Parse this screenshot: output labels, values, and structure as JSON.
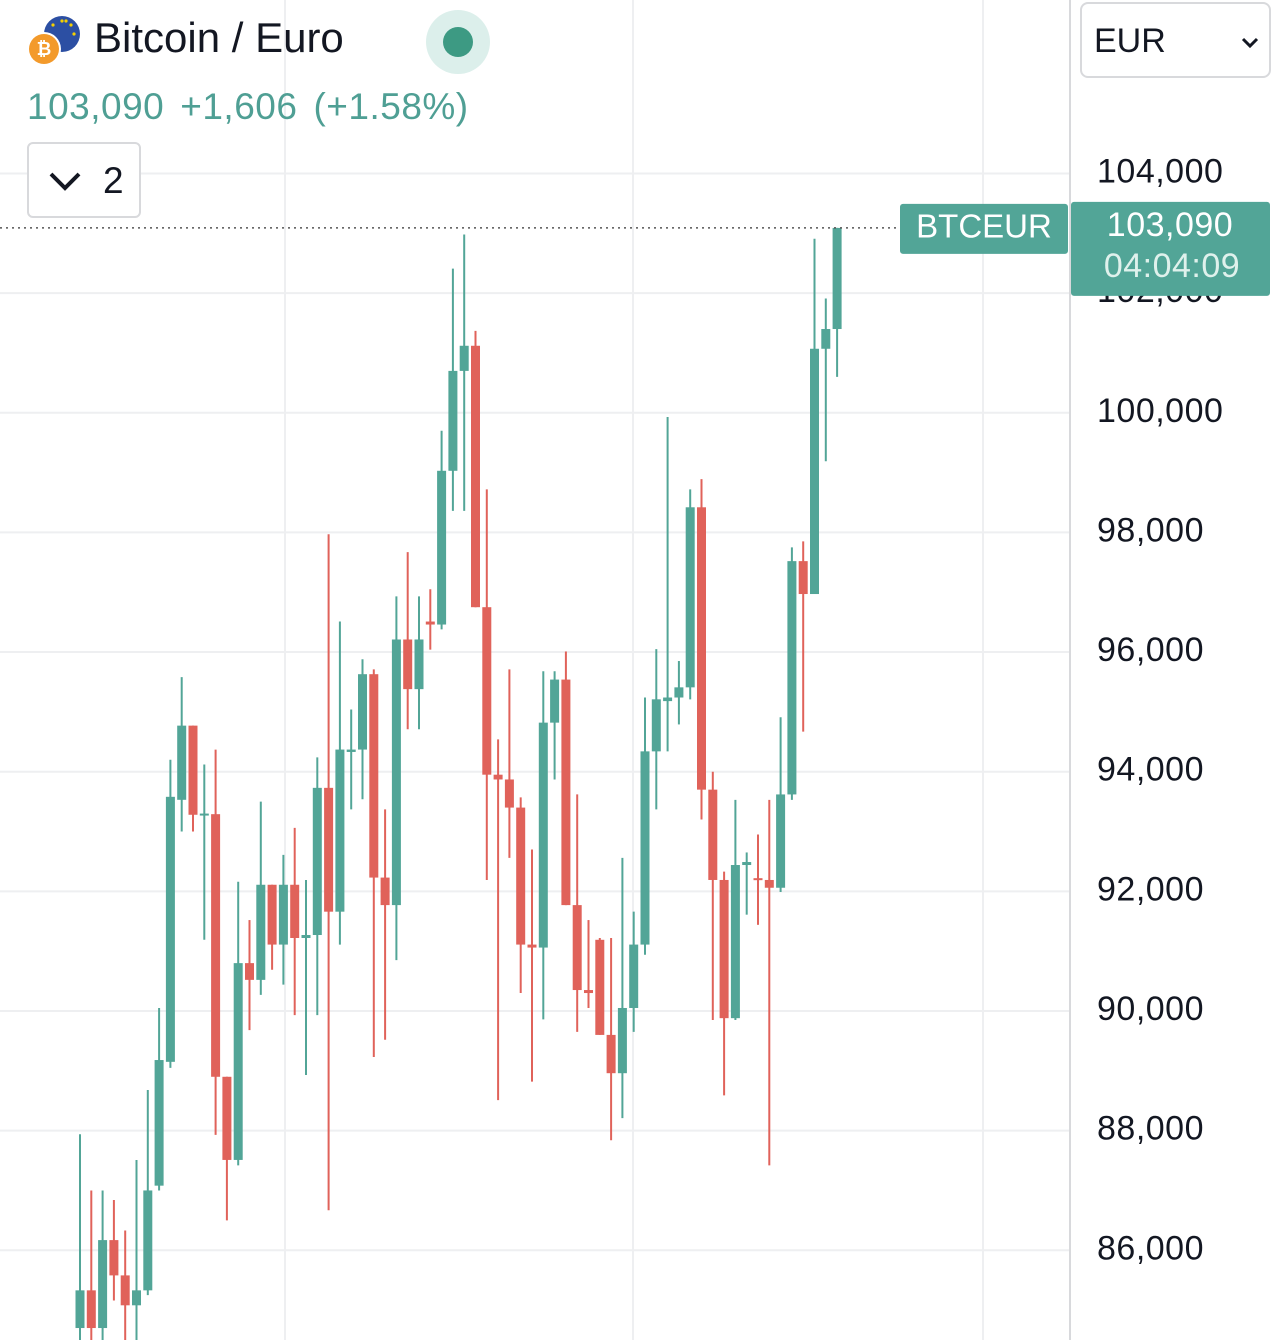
{
  "header": {
    "title": "Bitcoin / Euro",
    "price": "103,090",
    "change": "+1,606",
    "change_pct": "(+1.58%)",
    "indicators_count": "2",
    "currency": "EUR"
  },
  "chart_data": {
    "type": "candlestick",
    "up_color": "#52a597",
    "down_color": "#e0625a",
    "ylim": [
      84500,
      106900
    ],
    "yticks": [
      {
        "value": 86000,
        "label": "86,000"
      },
      {
        "value": 88000,
        "label": "88,000"
      },
      {
        "value": 90000,
        "label": "90,000"
      },
      {
        "value": 92000,
        "label": "92,000"
      },
      {
        "value": 94000,
        "label": "94,000"
      },
      {
        "value": 96000,
        "label": "96,000"
      },
      {
        "value": 98000,
        "label": "98,000"
      },
      {
        "value": 100000,
        "label": "100,000"
      },
      {
        "value": 102000,
        "label": "102,000"
      },
      {
        "value": 104000,
        "label": "104,000"
      }
    ],
    "grid": true,
    "open": [
      84700,
      85330,
      84700,
      86170,
      85580,
      85080,
      85330,
      87080,
      89150,
      93530,
      94770,
      93280,
      93290,
      88900,
      87510,
      90800,
      90520,
      92110,
      91110,
      92110,
      91220,
      91270,
      93730,
      91660,
      94330,
      94370,
      95630,
      92230,
      91770,
      96210,
      95380,
      96510,
      96460,
      99030,
      100700,
      101120,
      96750,
      93950,
      93870,
      93400,
      91110,
      91060,
      94820,
      95540,
      91770,
      90350,
      91190,
      89600,
      88960,
      90050,
      91110,
      94340,
      95180,
      95240,
      95410,
      98420,
      93700,
      92190,
      89880,
      92440,
      92220,
      92190,
      92060,
      93620,
      97520,
      96970,
      101070,
      101400
    ],
    "high": [
      87940,
      87000,
      87000,
      86840,
      86330,
      87510,
      88680,
      90050,
      94200,
      95580,
      94770,
      94120,
      94370,
      88900,
      92160,
      91520,
      93500,
      92110,
      92610,
      93060,
      92190,
      94240,
      97970,
      96510,
      95040,
      95880,
      95710,
      93370,
      96930,
      97670,
      96930,
      97050,
      99700,
      102410,
      102980,
      101370,
      98720,
      94540,
      95710,
      93570,
      92700,
      95680,
      95680,
      96010,
      93620,
      91520,
      91220,
      91220,
      92560,
      91660,
      95240,
      96050,
      99930,
      95850,
      98720,
      98890,
      94000,
      92330,
      93530,
      92650,
      92950,
      93530,
      94910,
      97750,
      97850,
      102910,
      101910,
      103090
    ],
    "low": [
      84500,
      84500,
      84500,
      85160,
      84500,
      84500,
      85250,
      87000,
      89050,
      93000,
      93000,
      91190,
      87930,
      86500,
      87420,
      89680,
      90270,
      90690,
      90440,
      89930,
      88930,
      89930,
      86670,
      91110,
      93370,
      93540,
      89230,
      89520,
      90850,
      94710,
      94710,
      96040,
      96380,
      98360,
      98360,
      96750,
      92190,
      88510,
      92560,
      90300,
      88820,
      89860,
      93870,
      91770,
      89650,
      90050,
      89600,
      87840,
      88210,
      89650,
      90940,
      93370,
      94340,
      94790,
      95210,
      93200,
      89850,
      88590,
      89850,
      91610,
      91440,
      87420,
      91990,
      93530,
      94670,
      96970,
      99190,
      100600
    ],
    "close": [
      85330,
      84700,
      86170,
      85580,
      85080,
      85330,
      87000,
      89180,
      93580,
      94770,
      93280,
      93300,
      88900,
      87510,
      90800,
      90520,
      92110,
      91110,
      92110,
      91220,
      91270,
      93730,
      91660,
      94370,
      94370,
      95630,
      92230,
      91770,
      96210,
      95380,
      96210,
      96460,
      99030,
      100700,
      101120,
      96750,
      93950,
      93870,
      93400,
      91110,
      91060,
      94820,
      95540,
      91770,
      90350,
      90300,
      89600,
      88960,
      90050,
      91110,
      94340,
      95210,
      95240,
      95410,
      98420,
      93700,
      92190,
      89880,
      92440,
      92490,
      92190,
      92060,
      93620,
      97520,
      96970,
      101070,
      101400,
      103090
    ],
    "price_label": {
      "symbol": "BTCEUR",
      "value": 103090,
      "label": "103,090",
      "countdown": "04:04:09"
    }
  }
}
